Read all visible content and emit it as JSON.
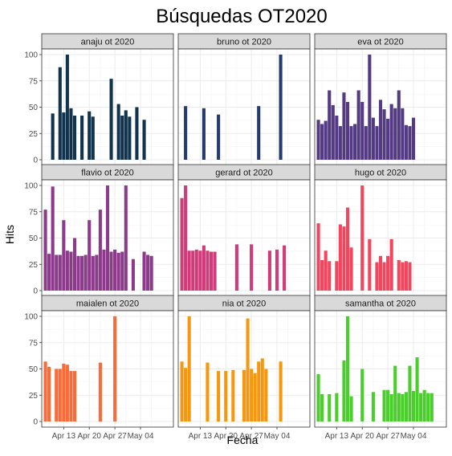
{
  "chart_data": {
    "type": "bar",
    "title": "Búsquedas OT2020",
    "xlabel": "Fecha",
    "ylabel": "Hits",
    "ylim": [
      0,
      100
    ],
    "y_ticks": [
      0,
      25,
      50,
      75,
      100
    ],
    "x_ticks": [
      {
        "date": "2020-04-13",
        "label": "Apr 13"
      },
      {
        "date": "2020-04-20",
        "label": "Apr 20"
      },
      {
        "date": "2020-04-27",
        "label": "Apr 27"
      },
      {
        "date": "2020-05-04",
        "label": "May 04"
      }
    ],
    "xlim": [
      "2020-04-07",
      "2020-05-13"
    ],
    "grid": true,
    "legend": "none",
    "layout": {
      "rows": 3,
      "cols": 3
    },
    "panels": [
      {
        "name": "anaju ot 2020",
        "color": "#12334e",
        "dates": [
          "2020-04-10",
          "2020-04-12",
          "2020-04-13",
          "2020-04-14",
          "2020-04-15",
          "2020-04-16",
          "2020-04-18",
          "2020-04-20",
          "2020-04-21",
          "2020-04-26",
          "2020-04-28",
          "2020-04-29",
          "2020-04-30",
          "2020-05-01",
          "2020-05-03",
          "2020-05-05"
        ],
        "values": [
          44,
          88,
          45,
          100,
          49,
          42,
          42,
          46,
          41,
          77,
          53,
          42,
          47,
          41,
          50,
          38
        ]
      },
      {
        "name": "bruno ot 2020",
        "color": "#253a6d",
        "dates": [
          "2020-04-09",
          "2020-04-14",
          "2020-04-18",
          "2020-04-29",
          "2020-05-05"
        ],
        "values": [
          51,
          49,
          43,
          51,
          100
        ]
      },
      {
        "name": "eva ot 2020",
        "color": "#543a83",
        "dates": [
          "2020-04-08",
          "2020-04-09",
          "2020-04-10",
          "2020-04-11",
          "2020-04-12",
          "2020-04-13",
          "2020-04-14",
          "2020-04-15",
          "2020-04-16",
          "2020-04-17",
          "2020-04-18",
          "2020-04-19",
          "2020-04-20",
          "2020-04-21",
          "2020-04-22",
          "2020-04-23",
          "2020-04-24",
          "2020-04-25",
          "2020-04-26",
          "2020-04-27",
          "2020-04-28",
          "2020-04-29",
          "2020-04-30",
          "2020-05-01",
          "2020-05-02",
          "2020-05-03",
          "2020-05-04"
        ],
        "values": [
          38,
          34,
          37,
          66,
          52,
          42,
          32,
          64,
          55,
          32,
          34,
          66,
          55,
          32,
          100,
          40,
          32,
          57,
          48,
          39,
          53,
          49,
          66,
          49,
          33,
          32,
          40
        ]
      },
      {
        "name": "flavio ot 2020",
        "color": "#8c3b8b",
        "dates": [
          "2020-04-08",
          "2020-04-09",
          "2020-04-10",
          "2020-04-11",
          "2020-04-12",
          "2020-04-13",
          "2020-04-14",
          "2020-04-15",
          "2020-04-16",
          "2020-04-17",
          "2020-04-18",
          "2020-04-19",
          "2020-04-20",
          "2020-04-21",
          "2020-04-22",
          "2020-04-23",
          "2020-04-24",
          "2020-04-25",
          "2020-04-26",
          "2020-04-27",
          "2020-04-28",
          "2020-04-29",
          "2020-04-30",
          "2020-05-02",
          "2020-05-05",
          "2020-05-06",
          "2020-05-07"
        ],
        "values": [
          77,
          35,
          99,
          34,
          34,
          67,
          38,
          37,
          50,
          33,
          33,
          34,
          67,
          33,
          34,
          77,
          39,
          100,
          37,
          39,
          36,
          37,
          100,
          30,
          37,
          34,
          33
        ]
      },
      {
        "name": "gerard ot 2020",
        "color": "#cf3c79",
        "dates": [
          "2020-04-08",
          "2020-04-09",
          "2020-04-10",
          "2020-04-11",
          "2020-04-12",
          "2020-04-13",
          "2020-04-14",
          "2020-04-15",
          "2020-04-16",
          "2020-04-17",
          "2020-04-23",
          "2020-04-27",
          "2020-05-02",
          "2020-05-04",
          "2020-05-06"
        ],
        "values": [
          88,
          100,
          38,
          38,
          39,
          38,
          43,
          38,
          37,
          37,
          44,
          44,
          38,
          39,
          43
        ]
      },
      {
        "name": "hugo ot 2020",
        "color": "#f2465e",
        "dates": [
          "2020-04-08",
          "2020-04-09",
          "2020-04-10",
          "2020-04-11",
          "2020-04-13",
          "2020-04-14",
          "2020-04-15",
          "2020-04-16",
          "2020-04-17",
          "2020-04-20",
          "2020-04-22",
          "2020-04-24",
          "2020-04-25",
          "2020-04-26",
          "2020-04-27",
          "2020-04-28",
          "2020-04-30",
          "2020-05-01",
          "2020-05-02",
          "2020-05-03"
        ],
        "values": [
          64,
          29,
          38,
          28,
          28,
          63,
          61,
          79,
          41,
          100,
          49,
          27,
          33,
          27,
          33,
          49,
          29,
          27,
          28,
          27
        ]
      },
      {
        "name": "maialen ot 2020",
        "color": "#fb6a37",
        "dates": [
          "2020-04-08",
          "2020-04-09",
          "2020-04-11",
          "2020-04-12",
          "2020-04-13",
          "2020-04-14",
          "2020-04-15",
          "2020-04-16",
          "2020-04-23",
          "2020-04-27"
        ],
        "values": [
          57,
          52,
          50,
          50,
          55,
          54,
          48,
          48,
          56,
          100
        ]
      },
      {
        "name": "nia ot 2020",
        "color": "#f6980f",
        "dates": [
          "2020-04-08",
          "2020-04-09",
          "2020-04-10",
          "2020-04-15",
          "2020-04-18",
          "2020-04-20",
          "2020-04-22",
          "2020-04-25",
          "2020-04-26",
          "2020-04-27",
          "2020-04-28",
          "2020-04-29",
          "2020-04-30",
          "2020-05-01",
          "2020-05-05"
        ],
        "values": [
          57,
          51,
          100,
          56,
          48,
          48,
          49,
          49,
          98,
          50,
          46,
          57,
          60,
          50,
          57
        ]
      },
      {
        "name": "samantha ot 2020",
        "color": "#4bce2d",
        "dates": [
          "2020-04-08",
          "2020-04-09",
          "2020-04-11",
          "2020-04-13",
          "2020-04-15",
          "2020-04-16",
          "2020-04-17",
          "2020-04-20",
          "2020-04-23",
          "2020-04-26",
          "2020-04-27",
          "2020-04-28",
          "2020-04-29",
          "2020-04-30",
          "2020-05-01",
          "2020-05-02",
          "2020-05-03",
          "2020-05-04",
          "2020-05-05",
          "2020-05-06",
          "2020-05-07",
          "2020-05-08",
          "2020-05-09"
        ],
        "values": [
          45,
          26,
          26,
          27,
          58,
          100,
          24,
          50,
          28,
          30,
          30,
          26,
          53,
          27,
          26,
          28,
          53,
          29,
          61,
          27,
          30,
          27,
          27
        ]
      }
    ]
  }
}
